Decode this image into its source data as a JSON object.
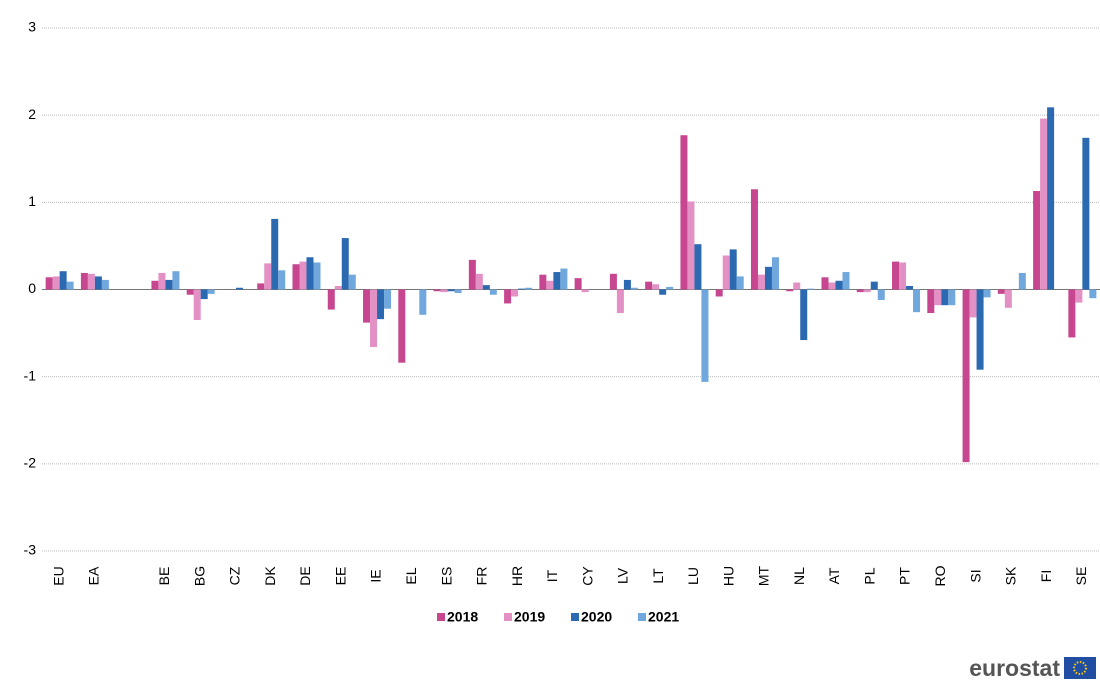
{
  "chart_data": {
    "type": "bar",
    "categories": [
      "EU",
      "EA",
      null,
      "BE",
      "BG",
      "CZ",
      "DK",
      "DE",
      "EE",
      "IE",
      "EL",
      "ES",
      "FR",
      "HR",
      "IT",
      "CY",
      "LV",
      "LT",
      "LU",
      "HU",
      "MT",
      "NL",
      "AT",
      "PL",
      "PT",
      "RO",
      "SI",
      "SK",
      "FI",
      "SE"
    ],
    "series": [
      {
        "name": "2018",
        "color": "#c6468f",
        "values": [
          0.14,
          0.19,
          null,
          0.1,
          -0.06,
          0.0,
          0.07,
          0.29,
          -0.23,
          -0.38,
          -0.84,
          -0.02,
          0.34,
          -0.16,
          0.17,
          0.13,
          0.18,
          0.09,
          1.77,
          -0.08,
          1.15,
          -0.02,
          0.14,
          -0.03,
          0.32,
          -0.27,
          -1.98,
          -0.05,
          1.13,
          -0.55
        ]
      },
      {
        "name": "2019",
        "color": "#e391c5",
        "values": [
          0.15,
          0.18,
          null,
          0.19,
          -0.35,
          0.0,
          0.3,
          0.32,
          0.04,
          -0.66,
          0.0,
          -0.03,
          0.18,
          -0.08,
          0.1,
          -0.03,
          -0.27,
          0.06,
          1.01,
          0.39,
          0.17,
          0.08,
          0.08,
          -0.03,
          0.31,
          -0.18,
          -0.32,
          -0.21,
          1.96,
          -0.15
        ]
      },
      {
        "name": "2020",
        "color": "#2b69b1",
        "values": [
          0.21,
          0.15,
          null,
          0.11,
          -0.11,
          0.02,
          0.81,
          0.37,
          0.59,
          -0.34,
          0.0,
          -0.02,
          0.05,
          0.01,
          0.2,
          0.0,
          0.11,
          -0.06,
          0.52,
          0.46,
          0.26,
          -0.58,
          0.1,
          0.09,
          0.04,
          -0.18,
          -0.92,
          0.0,
          2.09,
          1.74
        ]
      },
      {
        "name": "2021",
        "color": "#70a7dc",
        "values": [
          0.09,
          0.11,
          null,
          0.21,
          -0.05,
          0.0,
          0.22,
          0.31,
          0.17,
          -0.22,
          -0.29,
          -0.04,
          -0.06,
          0.02,
          0.24,
          0.0,
          0.02,
          0.03,
          -1.06,
          0.15,
          0.37,
          0.01,
          0.2,
          -0.12,
          -0.26,
          -0.18,
          -0.09,
          0.19,
          null,
          -0.1
        ]
      }
    ],
    "ylim": [
      -3,
      3
    ],
    "yticks": [
      -3,
      -2,
      -1,
      0,
      1,
      2,
      3
    ],
    "grid": true
  },
  "logo": "eurostat"
}
